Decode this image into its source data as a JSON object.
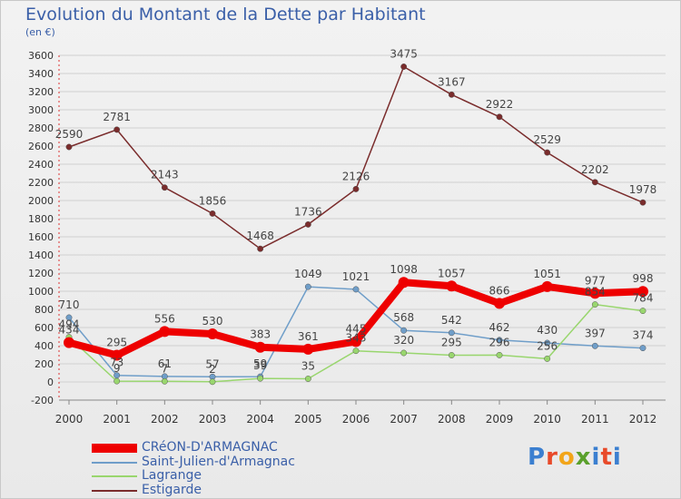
{
  "title": "Evolution du Montant de la Dette par Habitant",
  "subtitle": "(en €)",
  "logo_text": "Proxiti",
  "chart_data": {
    "type": "line",
    "title": "Evolution du Montant de la Dette par Habitant",
    "subtitle": "(en €)",
    "ylim": [
      -200,
      3600
    ],
    "y_ticks": [
      -200,
      0,
      200,
      400,
      600,
      800,
      1000,
      1200,
      1400,
      1600,
      1800,
      2000,
      2200,
      2400,
      2600,
      2800,
      3000,
      3200,
      3400,
      3600
    ],
    "x": [
      "2000",
      "2001",
      "2002",
      "2003",
      "2004",
      "2005",
      "2006",
      "2007",
      "2008",
      "2009",
      "2010",
      "2011",
      "2012"
    ],
    "grid": "horizontal",
    "legend_position": "bottom-left",
    "series": [
      {
        "name": "CRéON-D'ARMAGNAC",
        "color": "#ee0000",
        "width": 8,
        "values": [
          434,
          295,
          556,
          530,
          383,
          361,
          445,
          1098,
          1057,
          866,
          1051,
          977,
          998
        ],
        "labels": [
          "434",
          "295",
          "556",
          "530",
          "383",
          "361",
          "445",
          "1098",
          "1057",
          "866",
          "1051",
          "977",
          "998"
        ]
      },
      {
        "name": "Saint-Julien-d'Armagnac",
        "color": "#6f9ec9",
        "width": 1.5,
        "values": [
          710,
          73,
          61,
          57,
          59,
          1049,
          1021,
          568,
          542,
          462,
          430,
          397,
          374
        ],
        "labels": [
          "710",
          "73",
          "61",
          "57",
          "59",
          "1049",
          "1021",
          "568",
          "542",
          "462",
          "430",
          "397",
          "374"
        ]
      },
      {
        "name": "Lagrange",
        "color": "#99d66e",
        "width": 1.5,
        "values": [
          494,
          9,
          7,
          2,
          39,
          35,
          343,
          320,
          295,
          296,
          256,
          854,
          784
        ],
        "labels": [
          "494",
          "9",
          "7",
          "2",
          "39",
          "35",
          "343",
          "320",
          "295",
          "296",
          "256",
          "854",
          "784"
        ]
      },
      {
        "name": "Estigarde",
        "color": "#7a2c2c",
        "width": 1.5,
        "values": [
          2590,
          2781,
          2143,
          1856,
          1468,
          1736,
          2126,
          3475,
          3167,
          2922,
          2529,
          2202,
          1978
        ],
        "labels": [
          "2590",
          "2781",
          "2143",
          "1856",
          "1468",
          "1736",
          "2126",
          "3475",
          "3167",
          "2922",
          "2529",
          "2202",
          "1978"
        ]
      }
    ]
  }
}
